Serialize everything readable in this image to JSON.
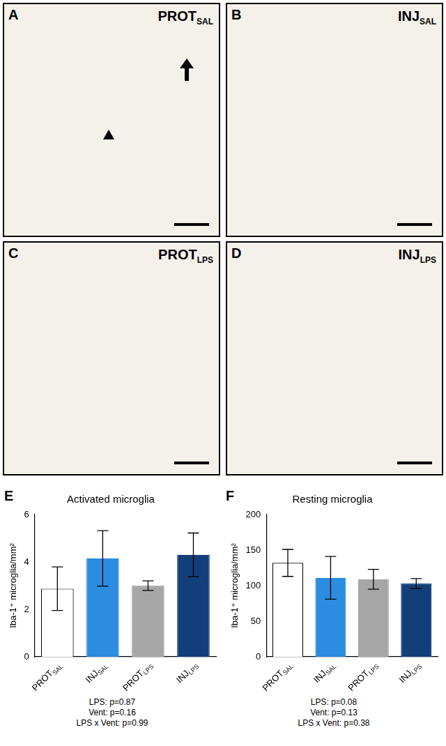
{
  "image_panels": [
    {
      "letter": "A",
      "label": "PROT",
      "subscript": "SAL"
    },
    {
      "letter": "B",
      "label": "INJ",
      "subscript": "SAL"
    },
    {
      "letter": "C",
      "label": "PROT",
      "subscript": "LPS"
    },
    {
      "letter": "D",
      "label": "INJ",
      "subscript": "LPS"
    }
  ],
  "chart_data": [
    {
      "panel": "E",
      "type": "bar",
      "title": "Activated microglia",
      "y_label": "Iba-1⁺ microglia/mm²",
      "categories": [
        "PROT",
        "INJ",
        "PROT",
        "INJ"
      ],
      "category_subscripts": [
        "SAL",
        "SAL",
        "LPS",
        "LPS"
      ],
      "values": [
        2.87,
        4.15,
        3.0,
        4.3
      ],
      "errors": [
        0.92,
        1.17,
        0.2,
        0.92
      ],
      "colors": [
        "#ffffff",
        "#2b8ce0",
        "#a6a6a6",
        "#123f7a"
      ],
      "ylim": [
        0,
        6
      ],
      "yticks": [
        0,
        2,
        4,
        6
      ],
      "grid": false,
      "annotations": [
        "LPS: p=0.87",
        "Vent: p=0.16",
        "LPS x Vent: p=0.99"
      ]
    },
    {
      "panel": "F",
      "type": "bar",
      "title": "Resting microglia",
      "y_label": "Iba-1⁺ microglia/mm²",
      "categories": [
        "PROT",
        "INJ",
        "PROT",
        "INJ"
      ],
      "category_subscripts": [
        "SAL",
        "SAL",
        "LPS",
        "LPS"
      ],
      "values": [
        132,
        111,
        109,
        103
      ],
      "errors": [
        19,
        30,
        14,
        7
      ],
      "colors": [
        "#ffffff",
        "#2b8ce0",
        "#a6a6a6",
        "#123f7a"
      ],
      "ylim": [
        0,
        200
      ],
      "yticks": [
        0,
        50,
        100,
        150,
        200
      ],
      "grid": false,
      "annotations": [
        "LPS: p=0.08",
        "Vent: p=0.13",
        "LPS x Vent: p=0.38"
      ]
    }
  ]
}
